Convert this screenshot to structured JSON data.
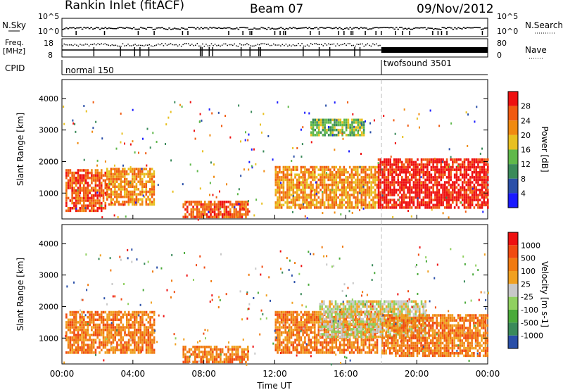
{
  "header": {
    "station": "Rankin Inlet (fitACF)",
    "beam": "Beam 07",
    "date": "09/Nov/2012"
  },
  "top_panels": {
    "nsky_label": "N.Sky",
    "nsky_ticks": [
      "10^5",
      "10^0"
    ],
    "nsearch_label": "N.Search",
    "nsearch_ticks": [
      "10^5",
      "10^0"
    ],
    "freq_label": "Freq.",
    "freq_unit": "[MHz]",
    "freq_ticks": [
      "18",
      "8"
    ],
    "nave_label": "Nave",
    "nave_ticks": [
      "80",
      "0"
    ],
    "cpid_label": "CPID",
    "cpid_segments": [
      {
        "name": "normal 150",
        "start_h": 0,
        "end_h": 18
      },
      {
        "name": "twofsound 3501",
        "start_h": 18,
        "end_h": 24
      }
    ]
  },
  "chart_data": [
    {
      "type": "heatmap",
      "panel": "power",
      "ylabel": "Slant Range [km]",
      "yticks": [
        1000,
        2000,
        3000,
        4000
      ],
      "ylim": [
        180,
        4600
      ],
      "xlim": [
        0,
        24
      ],
      "colorbar_label": "Power [dB]",
      "colorbar_ticks": [
        4,
        8,
        12,
        16,
        20,
        24,
        28
      ],
      "colorbar_colors": [
        "#1a1aff",
        "#2a4fa8",
        "#3a8a5a",
        "#5fb84a",
        "#e8c020",
        "#f08a10",
        "#f05a10",
        "#ee1010"
      ],
      "regions": [
        {
          "x0": 0.2,
          "x1": 2.5,
          "y0": 400,
          "y1": 1700,
          "level": 6
        },
        {
          "x0": 2.5,
          "x1": 5.2,
          "y0": 600,
          "y1": 1800,
          "level": 5
        },
        {
          "x0": 6.8,
          "x1": 10.5,
          "y0": 200,
          "y1": 700,
          "level": 6
        },
        {
          "x0": 12.0,
          "x1": 17.8,
          "y0": 500,
          "y1": 1800,
          "level": 5
        },
        {
          "x0": 17.8,
          "x1": 24.0,
          "y0": 500,
          "y1": 2100,
          "level": 7
        },
        {
          "x0": 14.0,
          "x1": 17.0,
          "y0": 2800,
          "y1": 3300,
          "level": 3
        }
      ]
    },
    {
      "type": "heatmap",
      "panel": "velocity",
      "ylabel": "Slant Range [km]",
      "xlabel": "Time UT",
      "xticks": [
        "00:00",
        "04:00",
        "08:00",
        "12:00",
        "16:00",
        "20:00",
        "00:00"
      ],
      "yticks": [
        1000,
        2000,
        3000,
        4000
      ],
      "ylim": [
        180,
        4600
      ],
      "xlim": [
        0,
        24
      ],
      "colorbar_label": "Velocity [m s-1]",
      "colorbar_ticks": [
        1000,
        500,
        100,
        25,
        -25,
        -100,
        -500,
        -1000
      ],
      "colorbar_colors": [
        "#2a4fa8",
        "#3a8a5a",
        "#4aaa3a",
        "#90d060",
        "#c8c8c8",
        "#f0a020",
        "#f07a10",
        "#f04a10",
        "#ee1010"
      ],
      "regions": [
        {
          "x0": 0.2,
          "x1": 5.2,
          "y0": 500,
          "y1": 1800,
          "level": 6
        },
        {
          "x0": 6.8,
          "x1": 10.5,
          "y0": 200,
          "y1": 700,
          "level": 6
        },
        {
          "x0": 12.0,
          "x1": 17.8,
          "y0": 500,
          "y1": 1800,
          "level": 6
        },
        {
          "x0": 14.5,
          "x1": 20.5,
          "y0": 1000,
          "y1": 2200,
          "level": 4
        },
        {
          "x0": 18.0,
          "x1": 24.0,
          "y0": 400,
          "y1": 1700,
          "level": 6
        }
      ]
    }
  ],
  "colors": {
    "axis": "#000000",
    "dashed_marker": "#bbbbbb"
  }
}
